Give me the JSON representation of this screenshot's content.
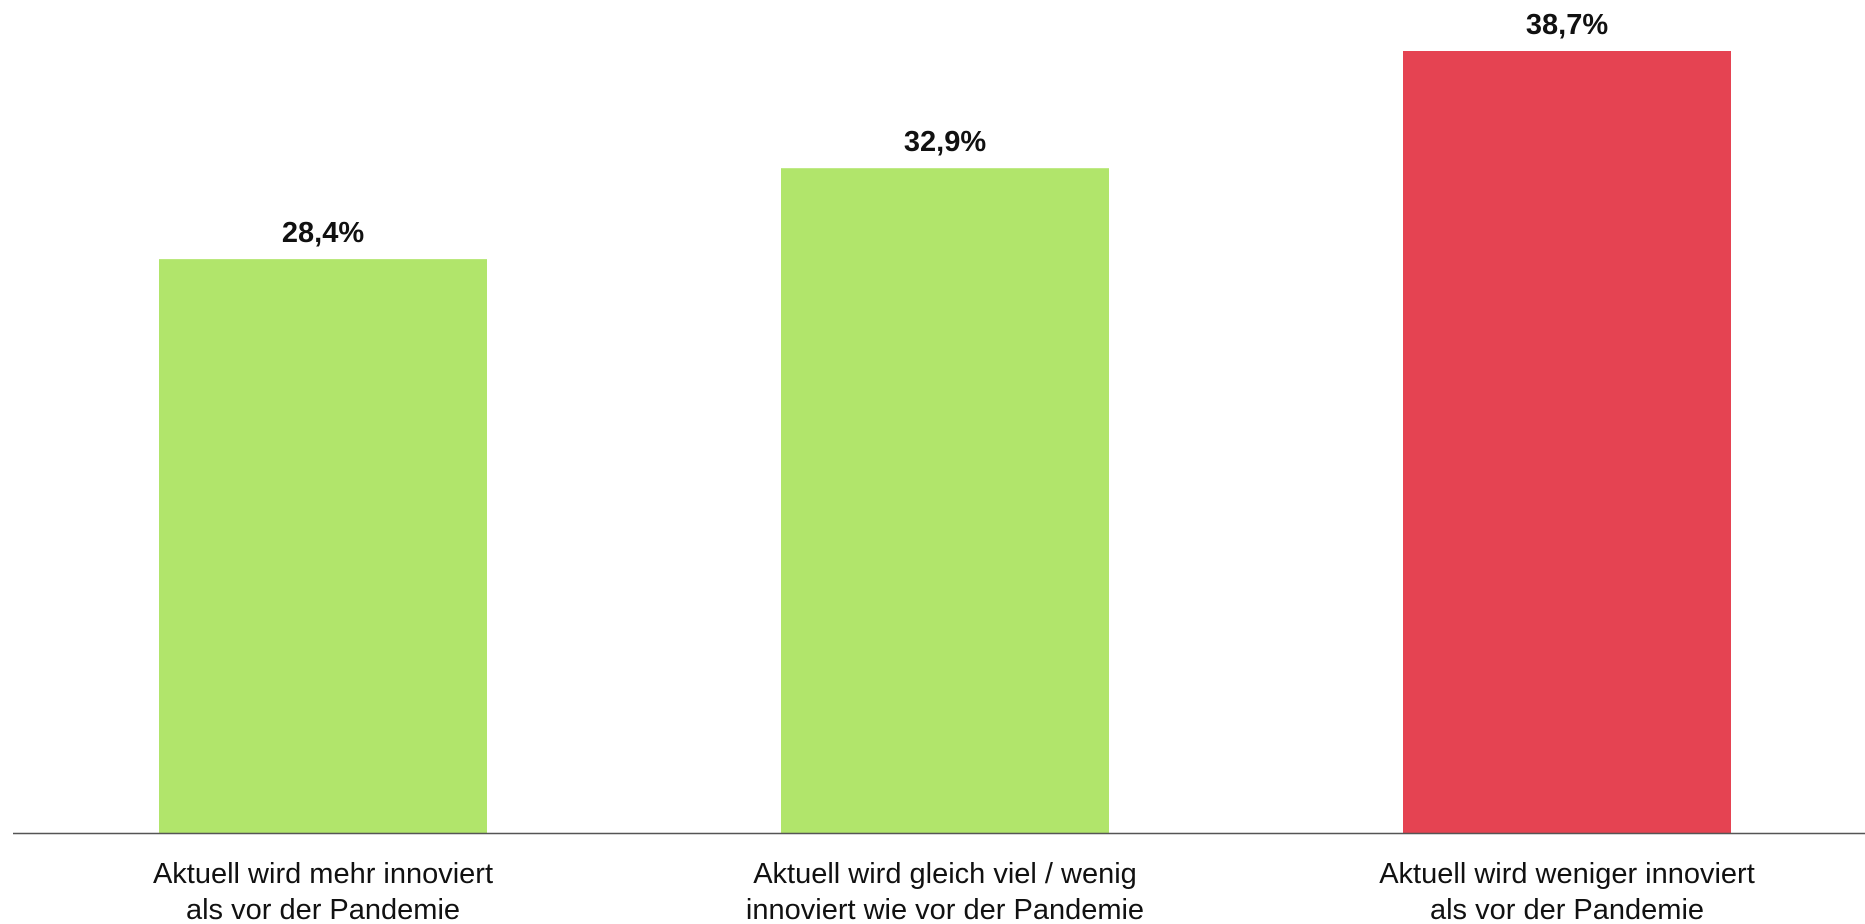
{
  "chart_data": {
    "type": "bar",
    "categories": [
      [
        "Aktuell wird mehr innoviert",
        "als vor der Pandemie"
      ],
      [
        "Aktuell wird gleich viel / wenig",
        "innoviert wie vor der Pandemie"
      ],
      [
        "Aktuell wird weniger innoviert",
        "als vor der Pandemie"
      ]
    ],
    "values": [
      28.4,
      32.9,
      38.7
    ],
    "data_labels": [
      "28,4%",
      "32,9%",
      "38,7%"
    ],
    "colors": [
      "#b1e56b",
      "#b1e56b",
      "#e54352"
    ],
    "ylim": [
      0,
      38.7
    ],
    "grid": false,
    "legend": "none",
    "title": "",
    "xlabel": "",
    "ylabel": ""
  }
}
